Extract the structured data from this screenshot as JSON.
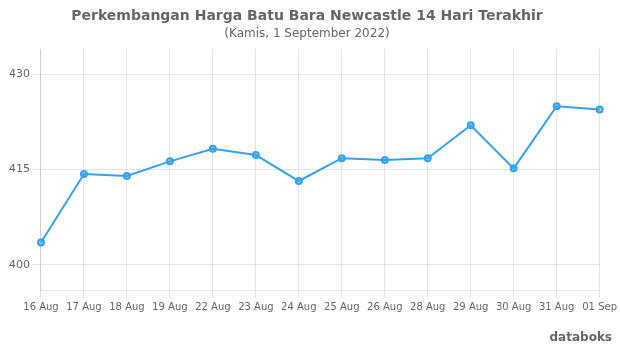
{
  "chart_data": {
    "type": "line",
    "title": "Perkembangan Harga Batu Bara Newcastle 14 Hari Terakhir",
    "subtitle": "(Kamis, 1 September 2022)",
    "categories": [
      "16 Aug",
      "17 Aug",
      "18 Aug",
      "19 Aug",
      "22 Aug",
      "23 Aug",
      "24 Aug",
      "25 Aug",
      "26 Aug",
      "28 Aug",
      "29 Aug",
      "30 Aug",
      "31 Aug",
      "01 Sep"
    ],
    "values": [
      403.5,
      414.3,
      414.0,
      416.3,
      418.3,
      417.3,
      413.2,
      416.8,
      416.5,
      416.8,
      422.0,
      415.2,
      425.0,
      424.5
    ],
    "ylim": [
      396,
      434
    ],
    "yticks": [
      400,
      415,
      430
    ],
    "grid": true,
    "marker": "circle",
    "annotations": [
      "databoks"
    ]
  }
}
